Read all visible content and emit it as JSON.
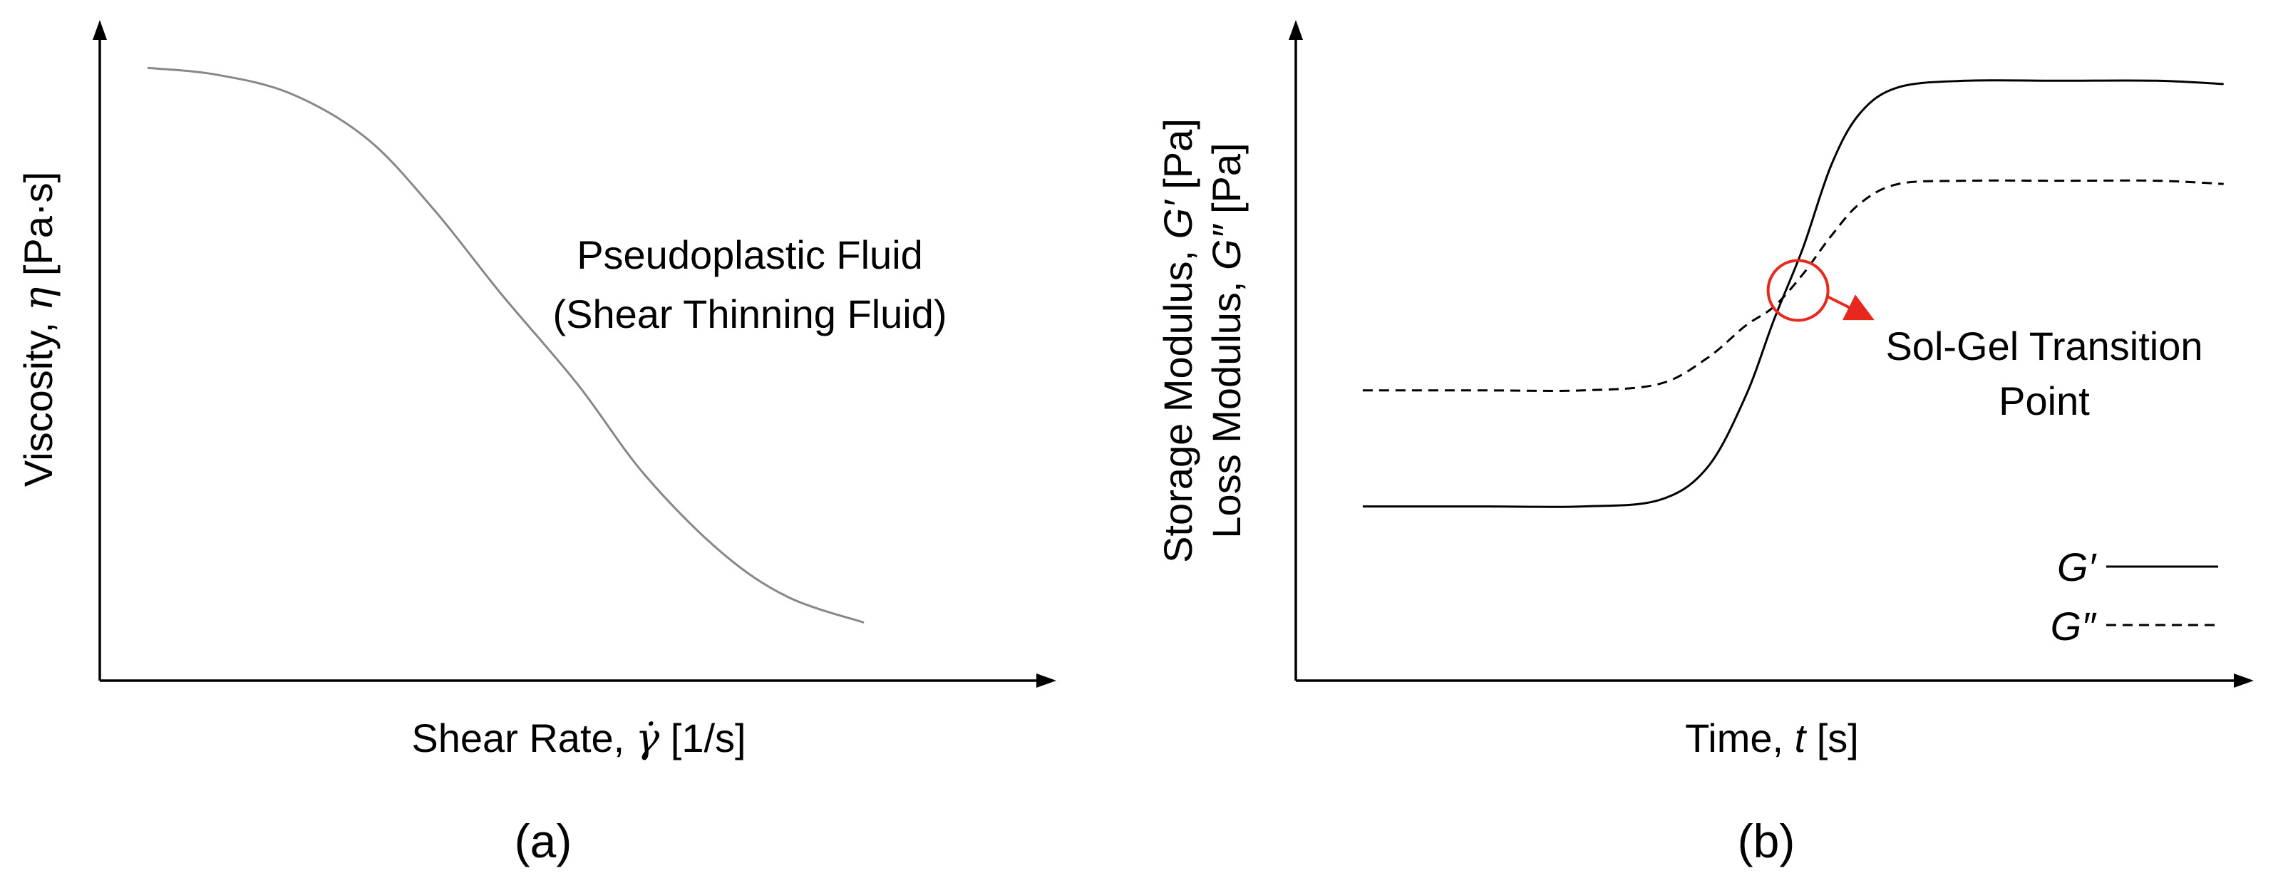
{
  "chart_data": [
    {
      "panel": "(a)",
      "type": "line",
      "xlabel": "Shear Rate, γ̇ [1/s]",
      "ylabel": "Viscosity, η [Pa·s]",
      "ticks": "none",
      "grid": false,
      "annotation": [
        "Pseudoplastic Fluid",
        "(Shear Thinning Fluid)"
      ],
      "xlim": [
        0,
        100
      ],
      "ylim": [
        0,
        100
      ],
      "series": [
        {
          "color": "#888888",
          "dash": "solid",
          "x": [
            5,
            12,
            20,
            28,
            35,
            42,
            50,
            57,
            65,
            72,
            80
          ],
          "y": [
            95,
            94,
            91,
            84,
            73,
            60,
            46,
            32,
            20,
            13,
            9
          ]
        }
      ]
    },
    {
      "panel": "(b)",
      "type": "line",
      "xlabel": "Time, t [s]",
      "ylabel_lines": [
        "Storage Modulus, G′ [Pa]",
        "Loss Modulus, G″ [Pa]"
      ],
      "ticks": "none",
      "grid": false,
      "legend_position": "bottom-right",
      "annotation": [
        "Sol-Gel Transition",
        "Point"
      ],
      "marker": {
        "shape": "circle",
        "color": "#e8271e",
        "x": 52.5,
        "y": 60.5
      },
      "xlim": [
        0,
        100
      ],
      "ylim": [
        0,
        100
      ],
      "series": [
        {
          "name": "G′",
          "color": "#000000",
          "dash": "solid",
          "x": [
            7,
            20,
            30,
            38,
            43,
            47,
            50,
            53,
            56,
            59,
            63,
            70,
            80,
            90,
            97
          ],
          "y": [
            27,
            27,
            27,
            28,
            33,
            44,
            56,
            67,
            80,
            88,
            92,
            93,
            93,
            93,
            92.5
          ]
        },
        {
          "name": "G″",
          "color": "#000000",
          "dash": "dashed",
          "x": [
            7,
            20,
            30,
            38,
            43,
            47,
            50,
            53,
            56,
            59,
            63,
            70,
            80,
            90,
            97
          ],
          "y": [
            45,
            45,
            45,
            46,
            50,
            55,
            58,
            63,
            69,
            74,
            77,
            77.5,
            77.5,
            77.5,
            77
          ]
        }
      ]
    }
  ],
  "labels": {
    "panel_a": "(a)",
    "panel_b": "(b)",
    "a_x_prefix": "Shear Rate, ",
    "a_x_symbol": "γ̇",
    "a_x_suffix": " [1/s]",
    "a_y_prefix": "Viscosity, ",
    "a_y_symbol": "η",
    "a_y_suffix": " [Pa·s]",
    "a_annotation_line1": "Pseudoplastic Fluid",
    "a_annotation_line2": "(Shear Thinning Fluid)",
    "b_x_prefix": "Time, ",
    "b_x_symbol": "t",
    "b_x_suffix": " [s]",
    "b_y1_prefix": "Storage Modulus, ",
    "b_y1_symbol": "G′",
    "b_y1_suffix": " [Pa]",
    "b_y2_prefix": "Loss Modulus, ",
    "b_y2_symbol": "G″",
    "b_y2_suffix": " [Pa]",
    "b_annotation_line1": "Sol-Gel Transition",
    "b_annotation_line2": "Point",
    "b_legend_g1": "G′",
    "b_legend_g2": "G″"
  }
}
